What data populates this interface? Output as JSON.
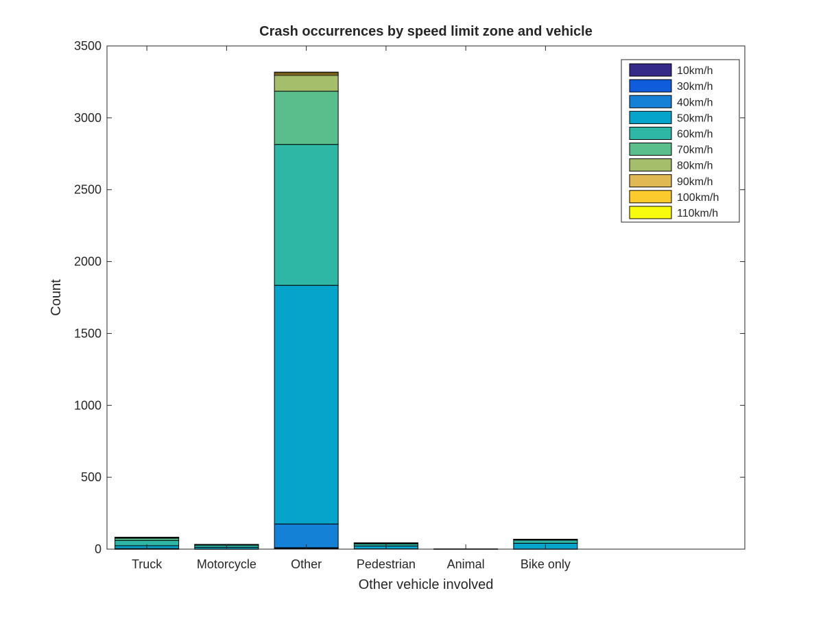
{
  "chart_data": {
    "type": "bar",
    "stacked": true,
    "title": "Crash occurrences by speed limit zone and vehicle",
    "xlabel": "Other vehicle involved",
    "ylabel": "Count",
    "ylim": [
      0,
      3500
    ],
    "yticks": [
      "0",
      "500",
      "1000",
      "1500",
      "2000",
      "2500",
      "3000",
      "3500"
    ],
    "xlim": [
      0.5,
      8.5
    ],
    "categories": [
      "Truck",
      "Motorcycle",
      "Other",
      "Pedestrian",
      "Animal",
      "Bike only"
    ],
    "legend_position": "top-right",
    "grid": false,
    "series": [
      {
        "name": "10km/h",
        "color": "#352a87",
        "values": [
          0,
          0,
          5,
          0,
          0,
          0
        ]
      },
      {
        "name": "30km/h",
        "color": "#0f5cdd",
        "values": [
          1,
          0,
          5,
          0,
          0,
          0
        ]
      },
      {
        "name": "40km/h",
        "color": "#1481d6",
        "values": [
          3,
          1,
          165,
          2,
          0,
          1
        ]
      },
      {
        "name": "50km/h",
        "color": "#06a4ca",
        "values": [
          20,
          12,
          1660,
          20,
          1,
          40
        ]
      },
      {
        "name": "60km/h",
        "color": "#2eb7a4",
        "values": [
          37,
          15,
          980,
          15,
          1,
          22
        ]
      },
      {
        "name": "70km/h",
        "color": "#59bd8c",
        "values": [
          15,
          3,
          370,
          4,
          0,
          4
        ]
      },
      {
        "name": "80km/h",
        "color": "#a5be6b",
        "values": [
          4,
          1,
          110,
          2,
          0,
          1
        ]
      },
      {
        "name": "90km/h",
        "color": "#e1b952",
        "values": [
          1,
          0,
          10,
          0,
          0,
          0
        ]
      },
      {
        "name": "100km/h",
        "color": "#fcca2d",
        "values": [
          2,
          1,
          10,
          1,
          0,
          1
        ]
      },
      {
        "name": "110km/h",
        "color": "#f9fb0e",
        "values": [
          0,
          0,
          3,
          0,
          0,
          0
        ]
      }
    ]
  }
}
